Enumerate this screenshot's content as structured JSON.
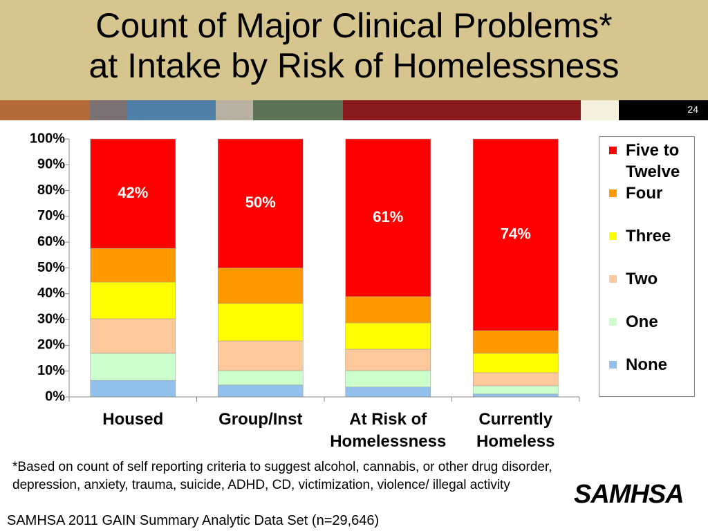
{
  "title": "Count of Major Clinical Problems*\nat Intake by Risk of Homelessness",
  "slide_number": "24",
  "chart_data": {
    "type": "stacked_bar",
    "categories": [
      "Housed",
      "Group/Inst",
      "At Risk of\nHomelessness",
      "Currently\nHomeless"
    ],
    "series": [
      {
        "name": "None",
        "color": "#93c1ee",
        "values": [
          6.4,
          4.6,
          3.8,
          1.1
        ]
      },
      {
        "name": "One",
        "color": "#ccffcc",
        "values": [
          10.5,
          5.6,
          6.4,
          3.2
        ]
      },
      {
        "name": "Two",
        "color": "#fdc89b",
        "values": [
          13.4,
          11.5,
          8.3,
          5.1
        ]
      },
      {
        "name": "Three",
        "color": "#ffff00",
        "values": [
          14.2,
          14.5,
          10.2,
          7.5
        ]
      },
      {
        "name": "Four",
        "color": "#ff9900",
        "values": [
          13.1,
          13.8,
          10.2,
          8.8
        ]
      },
      {
        "name": "Five to Twelve",
        "color": "#ff0000",
        "values": [
          42.4,
          50,
          61.1,
          74.3
        ],
        "value_labels": [
          "42%",
          "50%",
          "61%",
          "74%"
        ]
      }
    ],
    "ylim": [
      0,
      100
    ],
    "yticks": [
      {
        "value": 0,
        "label": "0%"
      },
      {
        "value": 10,
        "label": "10%"
      },
      {
        "value": 20,
        "label": "20%"
      },
      {
        "value": 30,
        "label": "30%"
      },
      {
        "value": 40,
        "label": "40%"
      },
      {
        "value": 50,
        "label": "50%"
      },
      {
        "value": 60,
        "label": "60%"
      },
      {
        "value": 70,
        "label": "70%"
      },
      {
        "value": 80,
        "label": "80%"
      },
      {
        "value": 90,
        "label": "90%"
      },
      {
        "value": 100,
        "label": "100%"
      }
    ],
    "legend": "right"
  },
  "footnote": "*Based on count of self reporting criteria to suggest alcohol, cannabis, or other drug disorder, depression, anxiety, trauma, suicide, ADHD, CD, victimization, violence/ illegal activity",
  "source": "SAMHSA 2011 GAIN Summary Analytic Data Set (n=29,646)",
  "logo": "SAMHSA"
}
